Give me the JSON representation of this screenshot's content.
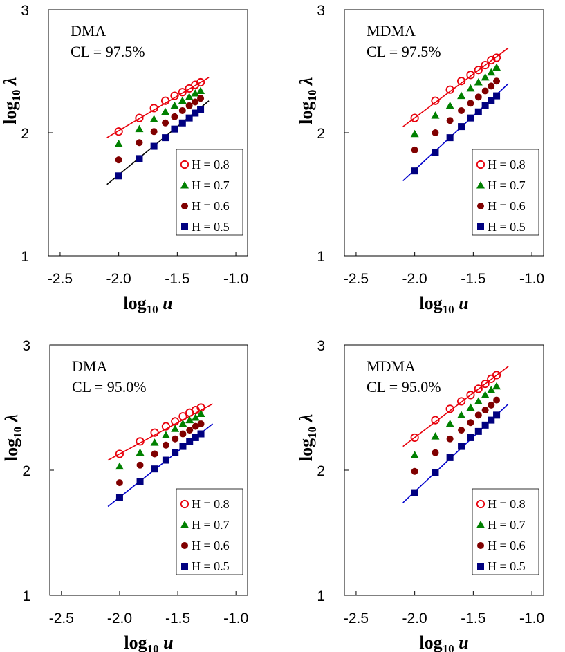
{
  "chart_data": [
    {
      "type": "scatter",
      "panel": "top-left",
      "annotations": [
        "DMA",
        "CL = 97.5%"
      ],
      "xlabel": "log10 u",
      "ylabel": "log10 λ",
      "xlim": [
        -2.6,
        -0.9
      ],
      "ylim": [
        1,
        3
      ],
      "xticks": [
        -2.5,
        -2.0,
        -1.5,
        -1.0
      ],
      "xtick_labels": [
        "-2.5",
        "-2.0",
        "-1.5",
        "-1.0"
      ],
      "yticks": [
        1,
        2,
        3
      ],
      "ytick_labels": [
        "1",
        "2",
        "3"
      ],
      "legend": {
        "placement": "bottom-right",
        "entries": [
          "H = 0.8",
          "H = 0.7",
          "H = 0.6",
          "H = 0.5"
        ]
      },
      "x": [
        -2.0,
        -1.824,
        -1.699,
        -1.602,
        -1.523,
        -1.456,
        -1.398,
        -1.347,
        -1.301
      ],
      "series": [
        {
          "name": "H = 0.8",
          "marker": "open-circle",
          "color": "#e8000b",
          "values": [
            2.01,
            2.12,
            2.2,
            2.26,
            2.3,
            2.33,
            2.36,
            2.39,
            2.41
          ]
        },
        {
          "name": "H = 0.7",
          "marker": "triangle",
          "color": "#008000",
          "values": [
            1.91,
            2.03,
            2.11,
            2.17,
            2.22,
            2.26,
            2.29,
            2.32,
            2.34
          ]
        },
        {
          "name": "H = 0.6",
          "marker": "filled-circle",
          "color": "#800000",
          "values": [
            1.78,
            1.92,
            2.01,
            2.08,
            2.13,
            2.18,
            2.22,
            2.25,
            2.28
          ]
        },
        {
          "name": "H = 0.5",
          "marker": "square",
          "color": "#000080",
          "values": [
            1.65,
            1.79,
            1.89,
            1.96,
            2.03,
            2.08,
            2.12,
            2.16,
            2.19
          ]
        }
      ],
      "fit_lines": [
        {
          "color": "#e8000b",
          "x": [
            -2.1,
            -1.23
          ],
          "y": [
            1.96,
            2.45
          ]
        },
        {
          "color": "#000000",
          "x": [
            -2.1,
            -1.23
          ],
          "y": [
            1.58,
            2.26
          ]
        }
      ]
    },
    {
      "type": "scatter",
      "panel": "top-right",
      "annotations": [
        "MDMA",
        "CL = 97.5%"
      ],
      "xlabel": "log10 u",
      "ylabel": "log10 λ",
      "xlim": [
        -2.6,
        -0.9
      ],
      "ylim": [
        1,
        3
      ],
      "xticks": [
        -2.5,
        -2.0,
        -1.5,
        -1.0
      ],
      "xtick_labels": [
        "-2.5",
        "-2.0",
        "-1.5",
        "-1.0"
      ],
      "yticks": [
        1,
        2,
        3
      ],
      "ytick_labels": [
        "1",
        "2",
        "3"
      ],
      "legend": {
        "placement": "bottom-right",
        "entries": [
          "H = 0.8",
          "H = 0.7",
          "H = 0.6",
          "H = 0.5"
        ]
      },
      "x": [
        -2.0,
        -1.824,
        -1.699,
        -1.602,
        -1.523,
        -1.456,
        -1.398,
        -1.347,
        -1.301
      ],
      "series": [
        {
          "name": "H = 0.8",
          "marker": "open-circle",
          "color": "#e8000b",
          "values": [
            2.12,
            2.26,
            2.35,
            2.42,
            2.47,
            2.51,
            2.55,
            2.59,
            2.61
          ]
        },
        {
          "name": "H = 0.7",
          "marker": "triangle",
          "color": "#008000",
          "values": [
            1.99,
            2.14,
            2.22,
            2.3,
            2.36,
            2.41,
            2.45,
            2.49,
            2.53
          ]
        },
        {
          "name": "H = 0.6",
          "marker": "filled-circle",
          "color": "#800000",
          "values": [
            1.86,
            2.0,
            2.1,
            2.18,
            2.24,
            2.29,
            2.34,
            2.38,
            2.42
          ]
        },
        {
          "name": "H = 0.5",
          "marker": "square",
          "color": "#000080",
          "values": [
            1.69,
            1.84,
            1.96,
            2.05,
            2.12,
            2.17,
            2.22,
            2.26,
            2.3
          ]
        }
      ],
      "fit_lines": [
        {
          "color": "#e8000b",
          "x": [
            -2.1,
            -1.2
          ],
          "y": [
            2.05,
            2.69
          ]
        },
        {
          "color": "#0000cc",
          "x": [
            -2.1,
            -1.2
          ],
          "y": [
            1.61,
            2.4
          ]
        }
      ]
    },
    {
      "type": "scatter",
      "panel": "bottom-left",
      "annotations": [
        "DMA",
        "CL = 95.0%"
      ],
      "xlabel": "log10 u",
      "ylabel": "log10 λ",
      "xlim": [
        -2.6,
        -0.9
      ],
      "ylim": [
        1,
        3
      ],
      "xticks": [
        -2.5,
        -2.0,
        -1.5,
        -1.0
      ],
      "xtick_labels": [
        "-2.5",
        "-2.0",
        "-1.5",
        "-1.0"
      ],
      "yticks": [
        1,
        2,
        3
      ],
      "ytick_labels": [
        "1",
        "2",
        "3"
      ],
      "legend": {
        "placement": "bottom-right",
        "entries": [
          "H = 0.8",
          "H = 0.7",
          "H = 0.6",
          "H = 0.5"
        ]
      },
      "x": [
        -2.0,
        -1.824,
        -1.699,
        -1.602,
        -1.523,
        -1.456,
        -1.398,
        -1.347,
        -1.301
      ],
      "series": [
        {
          "name": "H = 0.8",
          "marker": "open-circle",
          "color": "#e8000b",
          "values": [
            2.13,
            2.23,
            2.3,
            2.35,
            2.39,
            2.43,
            2.46,
            2.48,
            2.5
          ]
        },
        {
          "name": "H = 0.7",
          "marker": "triangle",
          "color": "#008000",
          "values": [
            2.03,
            2.14,
            2.22,
            2.28,
            2.33,
            2.37,
            2.4,
            2.42,
            2.45
          ]
        },
        {
          "name": "H = 0.6",
          "marker": "filled-circle",
          "color": "#800000",
          "values": [
            1.9,
            2.04,
            2.13,
            2.2,
            2.25,
            2.29,
            2.32,
            2.35,
            2.37
          ]
        },
        {
          "name": "H = 0.5",
          "marker": "square",
          "color": "#000080",
          "values": [
            1.78,
            1.91,
            2.01,
            2.08,
            2.14,
            2.19,
            2.23,
            2.26,
            2.29
          ]
        }
      ],
      "fit_lines": [
        {
          "color": "#e8000b",
          "x": [
            -2.1,
            -1.2
          ],
          "y": [
            2.08,
            2.53
          ]
        },
        {
          "color": "#0000cc",
          "x": [
            -2.1,
            -1.2
          ],
          "y": [
            1.71,
            2.37
          ]
        }
      ]
    },
    {
      "type": "scatter",
      "panel": "bottom-right",
      "annotations": [
        "MDMA",
        "CL = 95.0%"
      ],
      "xlabel": "log10 u",
      "ylabel": "log10 λ",
      "xlim": [
        -2.6,
        -0.9
      ],
      "ylim": [
        1,
        3
      ],
      "xticks": [
        -2.5,
        -2.0,
        -1.5,
        -1.0
      ],
      "xtick_labels": [
        "-2.5",
        "-2.0",
        "-1.5",
        "-1.0"
      ],
      "yticks": [
        1,
        2,
        3
      ],
      "ytick_labels": [
        "1",
        "2",
        "3"
      ],
      "legend": {
        "placement": "bottom-right",
        "entries": [
          "H = 0.8",
          "H = 0.7",
          "H = 0.6",
          "H = 0.5"
        ]
      },
      "x": [
        -2.0,
        -1.824,
        -1.699,
        -1.602,
        -1.523,
        -1.456,
        -1.398,
        -1.347,
        -1.301
      ],
      "series": [
        {
          "name": "H = 0.8",
          "marker": "open-circle",
          "color": "#e8000b",
          "values": [
            2.26,
            2.4,
            2.49,
            2.55,
            2.6,
            2.65,
            2.69,
            2.73,
            2.76
          ]
        },
        {
          "name": "H = 0.7",
          "marker": "triangle",
          "color": "#008000",
          "values": [
            2.12,
            2.27,
            2.37,
            2.44,
            2.5,
            2.55,
            2.6,
            2.64,
            2.67
          ]
        },
        {
          "name": "H = 0.6",
          "marker": "filled-circle",
          "color": "#800000",
          "values": [
            1.99,
            2.14,
            2.25,
            2.32,
            2.38,
            2.44,
            2.48,
            2.52,
            2.56
          ]
        },
        {
          "name": "H = 0.5",
          "marker": "square",
          "color": "#000080",
          "values": [
            1.82,
            1.98,
            2.1,
            2.19,
            2.26,
            2.31,
            2.36,
            2.4,
            2.44
          ]
        }
      ],
      "fit_lines": [
        {
          "color": "#e8000b",
          "x": [
            -2.1,
            -1.2
          ],
          "y": [
            2.19,
            2.83
          ]
        },
        {
          "color": "#0000cc",
          "x": [
            -2.1,
            -1.2
          ],
          "y": [
            1.74,
            2.53
          ]
        }
      ]
    }
  ]
}
